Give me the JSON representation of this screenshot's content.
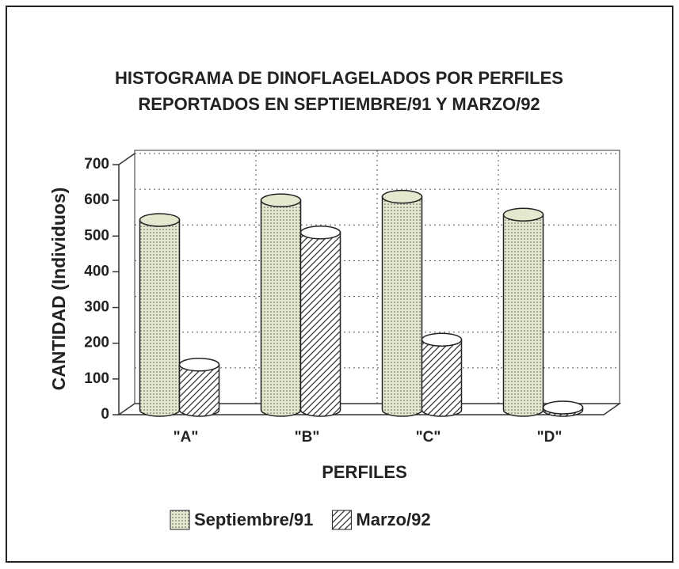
{
  "chart_data": {
    "type": "bar",
    "title": [
      "HISTOGRAMA DE DINOFLAGELADOS POR PERFILES",
      "REPORTADOS EN SEPTIEMBRE/91 Y MARZO/92"
    ],
    "y_label": "CANTIDAD (Individuos)",
    "x_label": "PERFILES",
    "categories": [
      "\"A\"",
      "\"B\"",
      "\"C\"",
      "\"D\""
    ],
    "series": [
      {
        "name": "Septiembre/91",
        "color": "#e3e9cf",
        "values": [
          545,
          600,
          610,
          560
        ]
      },
      {
        "name": "Marzo/92",
        "color": "#ffffff",
        "values": [
          140,
          510,
          210,
          20
        ]
      }
    ],
    "ylim": [
      0,
      700
    ],
    "yticks": [
      0,
      100,
      200,
      300,
      400,
      500,
      600,
      700
    ],
    "grid": true
  }
}
